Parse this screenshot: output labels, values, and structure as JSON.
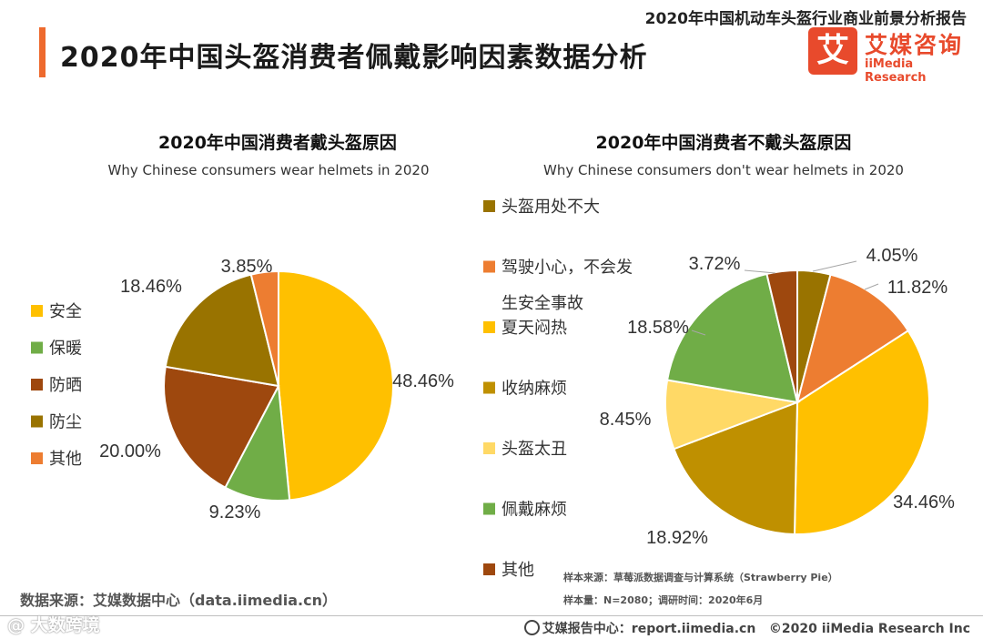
{
  "header": {
    "report_title": "2020年中国机动车头盔行业商业前景分析报告",
    "page_title": "2020年中国头盔消费者佩戴影响因素数据分析",
    "logo_mark": "艾",
    "logo_cn": "艾媒咨询",
    "logo_en": "iiMedia Research"
  },
  "colors": {
    "accent": "#ee6a2e",
    "brand": "#e84a2c"
  },
  "chart_data": [
    {
      "type": "pie",
      "title": "2020年中国消费者戴头盔原因",
      "subtitle": "Why Chinese consumers wear helmets in 2020",
      "legend_position": "left",
      "slices": [
        {
          "label": "安全",
          "value": 48.46,
          "display": "48.46%",
          "color": "#ffc000"
        },
        {
          "label": "保暖",
          "value": 9.23,
          "display": "9.23%",
          "color": "#70ad47"
        },
        {
          "label": "防晒",
          "value": 20.0,
          "display": "20.00%",
          "color": "#9e480e"
        },
        {
          "label": "防尘",
          "value": 18.46,
          "display": "18.46%",
          "color": "#997300"
        },
        {
          "label": "其他",
          "value": 3.85,
          "display": "3.85%",
          "color": "#ed7d31"
        }
      ]
    },
    {
      "type": "pie",
      "title": "2020年中国消费者不戴头盔原因",
      "subtitle": "Why Chinese consumers don't wear helmets in 2020",
      "legend_position": "left",
      "slices": [
        {
          "label": "头盔用处不大",
          "value": 4.05,
          "display": "4.05%",
          "color": "#997300"
        },
        {
          "label": "驾驶小心，不会发生安全事故",
          "label_lines": [
            "驾驶小心，不会发",
            "生安全事故"
          ],
          "value": 11.82,
          "display": "11.82%",
          "color": "#ed7d31"
        },
        {
          "label": "夏天闷热",
          "value": 34.46,
          "display": "34.46%",
          "color": "#ffc000"
        },
        {
          "label": "收纳麻烦",
          "value": 18.92,
          "display": "18.92%",
          "color": "#bf9000"
        },
        {
          "label": "头盔太丑",
          "value": 8.45,
          "display": "8.45%",
          "color": "#ffd966"
        },
        {
          "label": "佩戴麻烦",
          "value": 18.58,
          "display": "18.58%",
          "color": "#70ad47"
        },
        {
          "label": "其他",
          "value": 3.72,
          "display": "3.72%",
          "color": "#9e480e"
        }
      ]
    }
  ],
  "footer": {
    "data_source": "数据来源：艾媒数据中心（data.iimedia.cn）",
    "sample_source": "样本来源：草莓派数据调查与计算系统（Strawberry Pie）",
    "sample_info": "样本量：N=2080；调研时间：2020年6月",
    "site": "艾媒报告中心：report.iimedia.cn",
    "copyright": "©2020  iiMedia Research  Inc",
    "watermark": "@ 大数跨境"
  }
}
